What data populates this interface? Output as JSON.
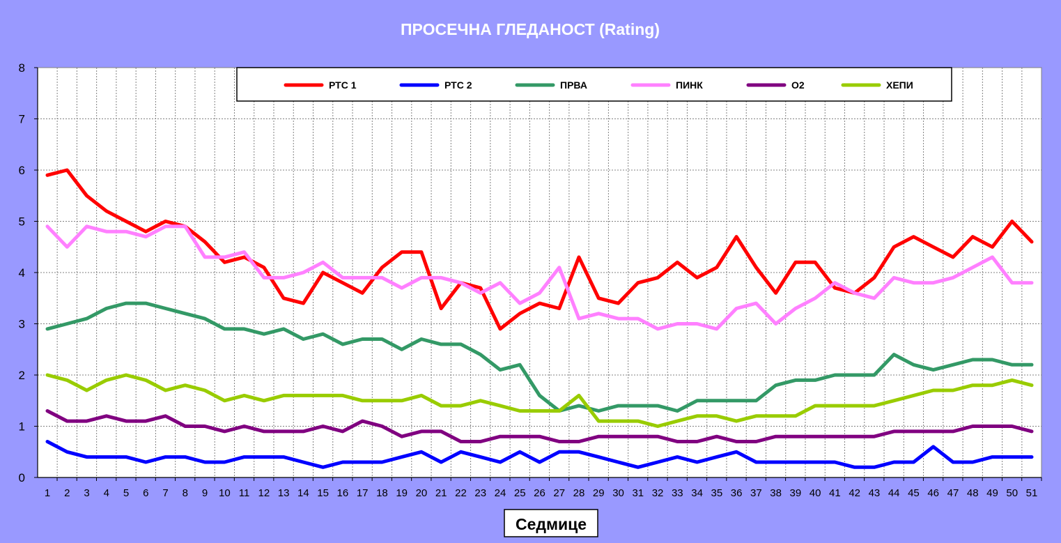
{
  "chart_data": {
    "type": "line",
    "title": "ПРОСЕЧНА ГЛЕДАНОСТ (Rating)",
    "xlabel": "Седмице",
    "ylabel": "",
    "ylim": [
      0,
      8
    ],
    "yticks": [
      0,
      1,
      2,
      3,
      4,
      5,
      6,
      7,
      8
    ],
    "grid": true,
    "legend_position": "top",
    "x": [
      1,
      2,
      3,
      4,
      5,
      6,
      7,
      8,
      9,
      10,
      11,
      12,
      13,
      14,
      15,
      16,
      17,
      18,
      19,
      20,
      21,
      22,
      23,
      24,
      25,
      26,
      27,
      28,
      29,
      30,
      31,
      32,
      33,
      34,
      35,
      36,
      37,
      38,
      39,
      40,
      41,
      42,
      43,
      44,
      45,
      46,
      47,
      48,
      49,
      50,
      51
    ],
    "series": [
      {
        "name": "РТС 1",
        "color": "#ff0000",
        "values": [
          5.9,
          6.0,
          5.5,
          5.2,
          5.0,
          4.8,
          5.0,
          4.9,
          4.6,
          4.2,
          4.3,
          4.1,
          3.5,
          3.4,
          4.0,
          3.8,
          3.6,
          4.1,
          4.4,
          4.4,
          3.3,
          3.8,
          3.7,
          2.9,
          3.2,
          3.4,
          3.3,
          4.3,
          3.5,
          3.4,
          3.8,
          3.9,
          4.2,
          3.9,
          4.1,
          4.7,
          4.1,
          3.6,
          4.2,
          4.2,
          3.7,
          3.6,
          3.9,
          4.5,
          4.7,
          4.5,
          4.3,
          4.7,
          4.5,
          5.0,
          4.6
        ]
      },
      {
        "name": "РТС 2",
        "color": "#0000ff",
        "values": [
          0.7,
          0.5,
          0.4,
          0.4,
          0.4,
          0.3,
          0.4,
          0.4,
          0.3,
          0.3,
          0.4,
          0.4,
          0.4,
          0.3,
          0.2,
          0.3,
          0.3,
          0.3,
          0.4,
          0.5,
          0.3,
          0.5,
          0.4,
          0.3,
          0.5,
          0.3,
          0.5,
          0.5,
          0.4,
          0.3,
          0.2,
          0.3,
          0.4,
          0.3,
          0.4,
          0.5,
          0.3,
          0.3,
          0.3,
          0.3,
          0.3,
          0.2,
          0.2,
          0.3,
          0.3,
          0.6,
          0.3,
          0.3,
          0.4,
          0.4,
          0.4
        ]
      },
      {
        "name": "ПРВА",
        "color": "#339966",
        "values": [
          2.9,
          3.0,
          3.1,
          3.3,
          3.4,
          3.4,
          3.3,
          3.2,
          3.1,
          2.9,
          2.9,
          2.8,
          2.9,
          2.7,
          2.8,
          2.6,
          2.7,
          2.7,
          2.5,
          2.7,
          2.6,
          2.6,
          2.4,
          2.1,
          2.2,
          1.6,
          1.3,
          1.4,
          1.3,
          1.4,
          1.4,
          1.4,
          1.3,
          1.5,
          1.5,
          1.5,
          1.5,
          1.8,
          1.9,
          1.9,
          2.0,
          2.0,
          2.0,
          2.4,
          2.2,
          2.1,
          2.2,
          2.3,
          2.3,
          2.2,
          2.2
        ]
      },
      {
        "name": "ПИНК",
        "color": "#ff80ff",
        "values": [
          4.9,
          4.5,
          4.9,
          4.8,
          4.8,
          4.7,
          4.9,
          4.9,
          4.3,
          4.3,
          4.4,
          3.9,
          3.9,
          4.0,
          4.2,
          3.9,
          3.9,
          3.9,
          3.7,
          3.9,
          3.9,
          3.8,
          3.6,
          3.8,
          3.4,
          3.6,
          4.1,
          3.1,
          3.2,
          3.1,
          3.1,
          2.9,
          3.0,
          3.0,
          2.9,
          3.3,
          3.4,
          3.0,
          3.3,
          3.5,
          3.8,
          3.6,
          3.5,
          3.9,
          3.8,
          3.8,
          3.9,
          4.1,
          4.3,
          3.8,
          3.8
        ]
      },
      {
        "name": "О2",
        "color": "#800080",
        "values": [
          1.3,
          1.1,
          1.1,
          1.2,
          1.1,
          1.1,
          1.2,
          1.0,
          1.0,
          0.9,
          1.0,
          0.9,
          0.9,
          0.9,
          1.0,
          0.9,
          1.1,
          1.0,
          0.8,
          0.9,
          0.9,
          0.7,
          0.7,
          0.8,
          0.8,
          0.8,
          0.7,
          0.7,
          0.8,
          0.8,
          0.8,
          0.8,
          0.7,
          0.7,
          0.8,
          0.7,
          0.7,
          0.8,
          0.8,
          0.8,
          0.8,
          0.8,
          0.8,
          0.9,
          0.9,
          0.9,
          0.9,
          1.0,
          1.0,
          1.0,
          0.9
        ]
      },
      {
        "name": "ХЕПИ",
        "color": "#99cc00",
        "values": [
          2.0,
          1.9,
          1.7,
          1.9,
          2.0,
          1.9,
          1.7,
          1.8,
          1.7,
          1.5,
          1.6,
          1.5,
          1.6,
          1.6,
          1.6,
          1.6,
          1.5,
          1.5,
          1.5,
          1.6,
          1.4,
          1.4,
          1.5,
          1.4,
          1.3,
          1.3,
          1.3,
          1.6,
          1.1,
          1.1,
          1.1,
          1.0,
          1.1,
          1.2,
          1.2,
          1.1,
          1.2,
          1.2,
          1.2,
          1.4,
          1.4,
          1.4,
          1.4,
          1.5,
          1.6,
          1.7,
          1.7,
          1.8,
          1.8,
          1.9,
          1.8
        ]
      }
    ]
  }
}
